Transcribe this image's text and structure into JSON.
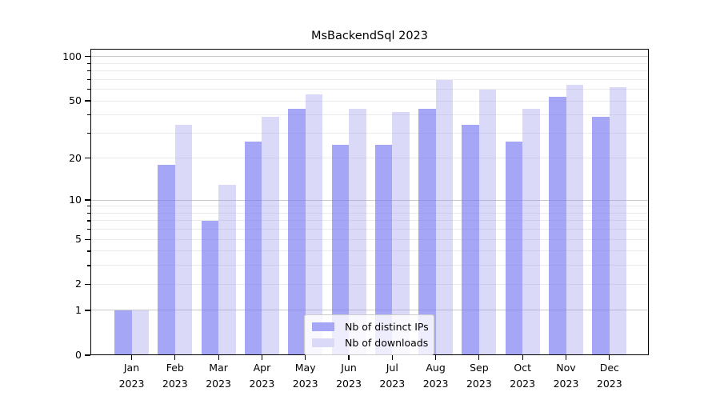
{
  "title": "MsBackendSql 2023",
  "chart_data": {
    "type": "bar",
    "title": "MsBackendSql 2023",
    "categories": [
      [
        "Jan",
        "2023"
      ],
      [
        "Feb",
        "2023"
      ],
      [
        "Mar",
        "2023"
      ],
      [
        "Apr",
        "2023"
      ],
      [
        "May",
        "2023"
      ],
      [
        "Jun",
        "2023"
      ],
      [
        "Jul",
        "2023"
      ],
      [
        "Aug",
        "2023"
      ],
      [
        "Sep",
        "2023"
      ],
      [
        "Oct",
        "2023"
      ],
      [
        "Nov",
        "2023"
      ],
      [
        "Dec",
        "2023"
      ]
    ],
    "series": [
      {
        "name": "Nb of distinct IPs",
        "color": "#7676f1",
        "alpha": 0.65,
        "legend_color": "#a6a6f6",
        "values": [
          1,
          18,
          7,
          26,
          44,
          25,
          25,
          44,
          34,
          26,
          53,
          39
        ]
      },
      {
        "name": "Nb of downloads",
        "color": "#9595eb",
        "alpha": 0.35,
        "legend_color": "#dadaf8",
        "values": [
          1,
          34,
          13,
          39,
          55,
          44,
          42,
          69,
          60,
          44,
          64,
          62
        ]
      }
    ],
    "xlabel": "",
    "ylabel": "",
    "yscale": "log1p",
    "ylim": [
      0,
      112
    ],
    "yticks": [
      0,
      1,
      2,
      5,
      10,
      20,
      50,
      100
    ],
    "major_grid": [
      1,
      10,
      100
    ],
    "minor_grid": [
      2,
      3,
      4,
      5,
      6,
      7,
      8,
      9,
      20,
      30,
      40,
      50,
      60,
      70,
      80,
      90
    ],
    "minor_tick_values": [
      3,
      4,
      6,
      7,
      8,
      9,
      30,
      40,
      60,
      70,
      80,
      90
    ],
    "grid": true,
    "legend_position": "lower center",
    "colors": {
      "major_grid": "#c9c9c9",
      "minor_grid": "#ebebeb",
      "axis": "#000000",
      "background": "#ffffff"
    }
  }
}
